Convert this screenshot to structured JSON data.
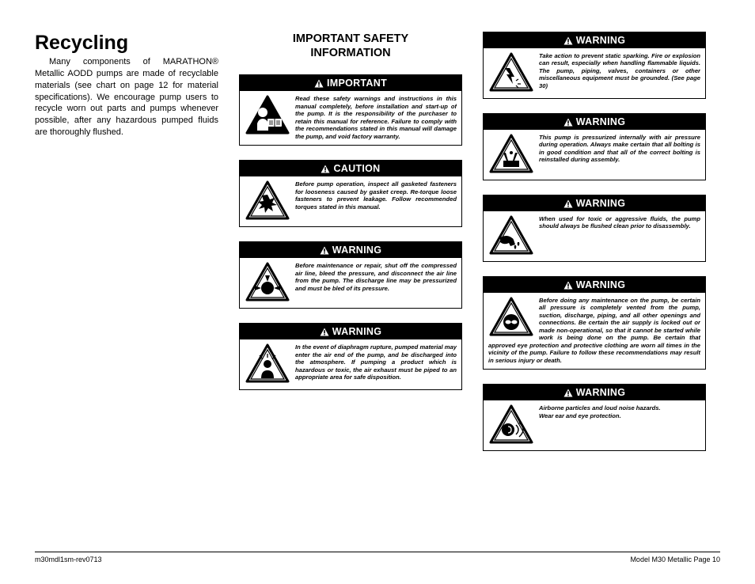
{
  "footer": {
    "left": "m30mdl1sm-rev0713",
    "right": "Model M30 Metallic Page 10"
  },
  "recycling": {
    "heading": "Recycling",
    "body": "Many components of MARATHON® Metallic AODD pumps are made of recyclable materials (see chart on page 12 for material specifications). We encourage pump users to recycle worn out parts and pumps whenever possible, after any hazardous pumped fluids are thoroughly flushed."
  },
  "safety_heading": "IMPORTANT SAFETY INFORMATION",
  "labels": {
    "important": "IMPORTANT",
    "caution": "CAUTION",
    "warning": "WARNING"
  },
  "boxes": {
    "mid": [
      {
        "type": "important",
        "text": "Read these safety warnings and instructions in this manual completely, before installation and start-up of the pump. It is the responsibility of the purchaser to retain this manual for reference. Failure to comply with the recommendations stated in this manual will damage the pump, and void factory warranty."
      },
      {
        "type": "caution",
        "text": "Before pump operation, inspect all gasketed fasteners for looseness caused by gasket creep. Re-torque loose fasteners to prevent leakage. Follow recommended torques stated in this manual."
      },
      {
        "type": "warning",
        "text": "Before maintenance or repair, shut off the compressed air line, bleed the pressure, and disconnect the air line from the pump. The discharge line may be pressurized and must be bled of its pressure."
      },
      {
        "type": "warning",
        "text": "In the event of diaphragm rupture, pumped material may enter the air end of the pump, and be discharged into the atmosphere. If pumping a product which is hazardous or toxic, the air exhaust must be piped to an appropriate area for safe disposition."
      }
    ],
    "right": [
      {
        "type": "warning",
        "text": "Take action to prevent static sparking. Fire or explosion can result, especially when handling flammable liquids. The pump, piping, valves, containers or other miscellaneous equipment must be grounded. (See page 30)"
      },
      {
        "type": "warning",
        "text": "This pump is pressurized internally with air pressure during operation. Always make certain that all bolting is in good condition and that all of the correct bolting is reinstalled during assembly."
      },
      {
        "type": "warning",
        "text": "When used for toxic or aggressive fluids, the pump should always be flushed clean prior to disassembly."
      },
      {
        "type": "warning",
        "text": "Before doing any maintenance on the pump, be certain all pressure is completely vented from the pump, suction, discharge, piping, and all other openings and connections. Be certain the air supply is locked out or made non-operational, so that it cannot be started while work is being done on the pump. Be certain that approved eye protection and protective clothing are worn all times in the vicinity of the pump. Failure to follow these recommendations may result in serious injury or death."
      },
      {
        "type": "warning",
        "text": "Airborne particles and loud noise hazards.\nWear ear and eye protection."
      }
    ]
  },
  "style": {
    "page_bg": "#ffffff",
    "text_color": "#000000",
    "label_bg": "#000000",
    "label_fg": "#ffffff",
    "body_font_size_pt": 7.6,
    "heading_font_size_pt": 25,
    "safety_heading_font_size_pt": 14.5
  }
}
